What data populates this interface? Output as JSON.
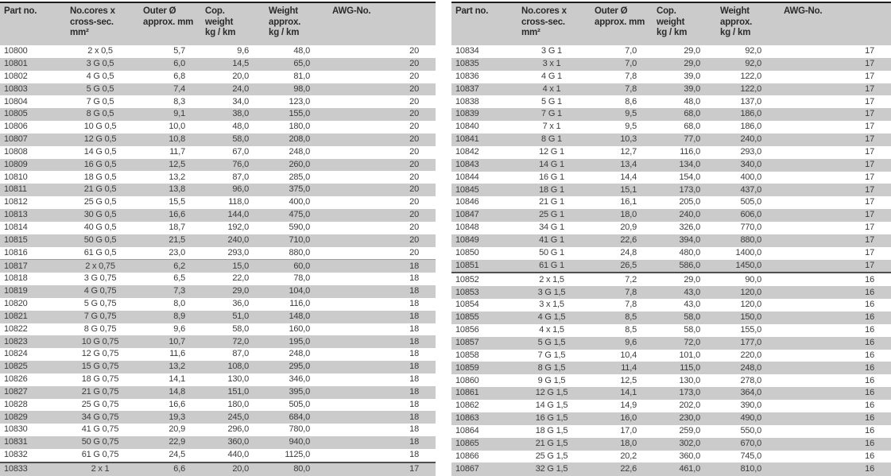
{
  "colors": {
    "row_stripe": "#cbcbcb",
    "header_bg": "#cbcbcb",
    "table_top_border": "#1c1c1c",
    "group_separator_dark": "#4e4e4e",
    "group_separator_light": "#9d9d9d",
    "text": "#3c3c3c"
  },
  "header_labels": {
    "part_no": "Part no.",
    "cores": [
      "No.cores x",
      "cross-sec.",
      "mm²"
    ],
    "outer": [
      "Outer Ø",
      "approx. mm"
    ],
    "cop": [
      "Cop.",
      "weight",
      "kg / km"
    ],
    "weight": [
      "Weight",
      "approx.",
      "kg / km"
    ],
    "awg": "AWG-No."
  },
  "tables": [
    {
      "name": "left",
      "separators": {
        "17": "light",
        "33": "dark"
      },
      "rows": [
        [
          "10800",
          "2 x 0,5",
          "5,7",
          "9,6",
          "48,0",
          "20"
        ],
        [
          "10801",
          "3 G 0,5",
          "6,0",
          "14,5",
          "65,0",
          "20"
        ],
        [
          "10802",
          "4 G 0,5",
          "6,8",
          "20,0",
          "81,0",
          "20"
        ],
        [
          "10803",
          "5 G 0,5",
          "7,4",
          "24,0",
          "98,0",
          "20"
        ],
        [
          "10804",
          "7 G 0,5",
          "8,3",
          "34,0",
          "123,0",
          "20"
        ],
        [
          "10805",
          "8 G 0,5",
          "9,1",
          "38,0",
          "155,0",
          "20"
        ],
        [
          "10806",
          "10 G 0,5",
          "10,0",
          "48,0",
          "180,0",
          "20"
        ],
        [
          "10807",
          "12 G 0,5",
          "10,8",
          "58,0",
          "208,0",
          "20"
        ],
        [
          "10808",
          "14 G 0,5",
          "11,7",
          "67,0",
          "248,0",
          "20"
        ],
        [
          "10809",
          "16 G 0,5",
          "12,5",
          "76,0",
          "260,0",
          "20"
        ],
        [
          "10810",
          "18 G 0,5",
          "13,2",
          "87,0",
          "285,0",
          "20"
        ],
        [
          "10811",
          "21 G 0,5",
          "13,8",
          "96,0",
          "375,0",
          "20"
        ],
        [
          "10812",
          "25 G 0,5",
          "15,5",
          "118,0",
          "400,0",
          "20"
        ],
        [
          "10813",
          "30 G 0,5",
          "16,6",
          "144,0",
          "475,0",
          "20"
        ],
        [
          "10814",
          "40 G 0,5",
          "18,7",
          "192,0",
          "590,0",
          "20"
        ],
        [
          "10815",
          "50 G 0,5",
          "21,5",
          "240,0",
          "710,0",
          "20"
        ],
        [
          "10816",
          "61 G 0,5",
          "23,0",
          "293,0",
          "880,0",
          "20"
        ],
        [
          "10817",
          "2 x 0,75",
          "6,2",
          "15,0",
          "60,0",
          "18"
        ],
        [
          "10818",
          "3 G 0,75",
          "6,5",
          "22,0",
          "78,0",
          "18"
        ],
        [
          "10819",
          "4 G 0,75",
          "7,3",
          "29,0",
          "104,0",
          "18"
        ],
        [
          "10820",
          "5 G 0,75",
          "8,0",
          "36,0",
          "116,0",
          "18"
        ],
        [
          "10821",
          "7 G 0,75",
          "8,9",
          "51,0",
          "148,0",
          "18"
        ],
        [
          "10822",
          "8 G 0,75",
          "9,6",
          "58,0",
          "160,0",
          "18"
        ],
        [
          "10823",
          "10 G 0,75",
          "10,7",
          "72,0",
          "195,0",
          "18"
        ],
        [
          "10824",
          "12 G 0,75",
          "11,6",
          "87,0",
          "248,0",
          "18"
        ],
        [
          "10825",
          "15 G 0,75",
          "13,2",
          "108,0",
          "295,0",
          "18"
        ],
        [
          "10826",
          "18 G 0,75",
          "14,1",
          "130,0",
          "346,0",
          "18"
        ],
        [
          "10827",
          "21 G 0,75",
          "14,8",
          "151,0",
          "395,0",
          "18"
        ],
        [
          "10828",
          "25 G 0,75",
          "16,6",
          "180,0",
          "505,0",
          "18"
        ],
        [
          "10829",
          "34 G 0,75",
          "19,3",
          "245,0",
          "684,0",
          "18"
        ],
        [
          "10830",
          "41 G 0,75",
          "20,9",
          "296,0",
          "780,0",
          "18"
        ],
        [
          "10831",
          "50 G 0,75",
          "22,9",
          "360,0",
          "940,0",
          "18"
        ],
        [
          "10832",
          "61 G 0,75",
          "24,5",
          "440,0",
          "1125,0",
          "18"
        ],
        [
          "10833",
          "2 x 1",
          "6,6",
          "20,0",
          "80,0",
          "17"
        ]
      ]
    },
    {
      "name": "right",
      "separators": {
        "18": "dark"
      },
      "rows": [
        [
          "10834",
          "3 G 1",
          "7,0",
          "29,0",
          "92,0",
          "17"
        ],
        [
          "10835",
          "3 x 1",
          "7,0",
          "29,0",
          "92,0",
          "17"
        ],
        [
          "10836",
          "4 G 1",
          "7,8",
          "39,0",
          "122,0",
          "17"
        ],
        [
          "10837",
          "4 x 1",
          "7,8",
          "39,0",
          "122,0",
          "17"
        ],
        [
          "10838",
          "5 G 1",
          "8,6",
          "48,0",
          "137,0",
          "17"
        ],
        [
          "10839",
          "7 G 1",
          "9,5",
          "68,0",
          "186,0",
          "17"
        ],
        [
          "10840",
          "7 x 1",
          "9,5",
          "68,0",
          "186,0",
          "17"
        ],
        [
          "10841",
          "8 G 1",
          "10,3",
          "77,0",
          "240,0",
          "17"
        ],
        [
          "10842",
          "12 G 1",
          "12,7",
          "116,0",
          "293,0",
          "17"
        ],
        [
          "10843",
          "14 G 1",
          "13,4",
          "134,0",
          "340,0",
          "17"
        ],
        [
          "10844",
          "16 G 1",
          "14,4",
          "154,0",
          "400,0",
          "17"
        ],
        [
          "10845",
          "18 G 1",
          "15,1",
          "173,0",
          "437,0",
          "17"
        ],
        [
          "10846",
          "21 G 1",
          "16,1",
          "205,0",
          "505,0",
          "17"
        ],
        [
          "10847",
          "25 G 1",
          "18,0",
          "240,0",
          "606,0",
          "17"
        ],
        [
          "10848",
          "34 G 1",
          "20,9",
          "326,0",
          "770,0",
          "17"
        ],
        [
          "10849",
          "41 G 1",
          "22,6",
          "394,0",
          "880,0",
          "17"
        ],
        [
          "10850",
          "50 G 1",
          "24,8",
          "480,0",
          "1400,0",
          "17"
        ],
        [
          "10851",
          "61 G 1",
          "26,5",
          "586,0",
          "1450,0",
          "17"
        ],
        [
          "10852",
          "2 x 1,5",
          "7,2",
          "29,0",
          "90,0",
          "16"
        ],
        [
          "10853",
          "3 G 1,5",
          "7,8",
          "43,0",
          "120,0",
          "16"
        ],
        [
          "10854",
          "3 x 1,5",
          "7,8",
          "43,0",
          "120,0",
          "16"
        ],
        [
          "10855",
          "4 G 1,5",
          "8,5",
          "58,0",
          "150,0",
          "16"
        ],
        [
          "10856",
          "4 x 1,5",
          "8,5",
          "58,0",
          "155,0",
          "16"
        ],
        [
          "10857",
          "5 G 1,5",
          "9,6",
          "72,0",
          "177,0",
          "16"
        ],
        [
          "10858",
          "7 G 1,5",
          "10,4",
          "101,0",
          "220,0",
          "16"
        ],
        [
          "10859",
          "8 G 1,5",
          "11,4",
          "115,0",
          "248,0",
          "16"
        ],
        [
          "10860",
          "9 G 1,5",
          "12,5",
          "130,0",
          "278,0",
          "16"
        ],
        [
          "10861",
          "12 G 1,5",
          "14,1",
          "173,0",
          "364,0",
          "16"
        ],
        [
          "10862",
          "14 G 1,5",
          "14,9",
          "202,0",
          "390,0",
          "16"
        ],
        [
          "10863",
          "16 G 1,5",
          "16,0",
          "230,0",
          "490,0",
          "16"
        ],
        [
          "10864",
          "18 G 1,5",
          "17,0",
          "259,0",
          "550,0",
          "16"
        ],
        [
          "10865",
          "21 G 1,5",
          "18,0",
          "302,0",
          "670,0",
          "16"
        ],
        [
          "10866",
          "25 G 1,5",
          "20,2",
          "360,0",
          "745,0",
          "16"
        ],
        [
          "10867",
          "32 G 1,5",
          "22,6",
          "461,0",
          "810,0",
          "16"
        ]
      ]
    }
  ]
}
